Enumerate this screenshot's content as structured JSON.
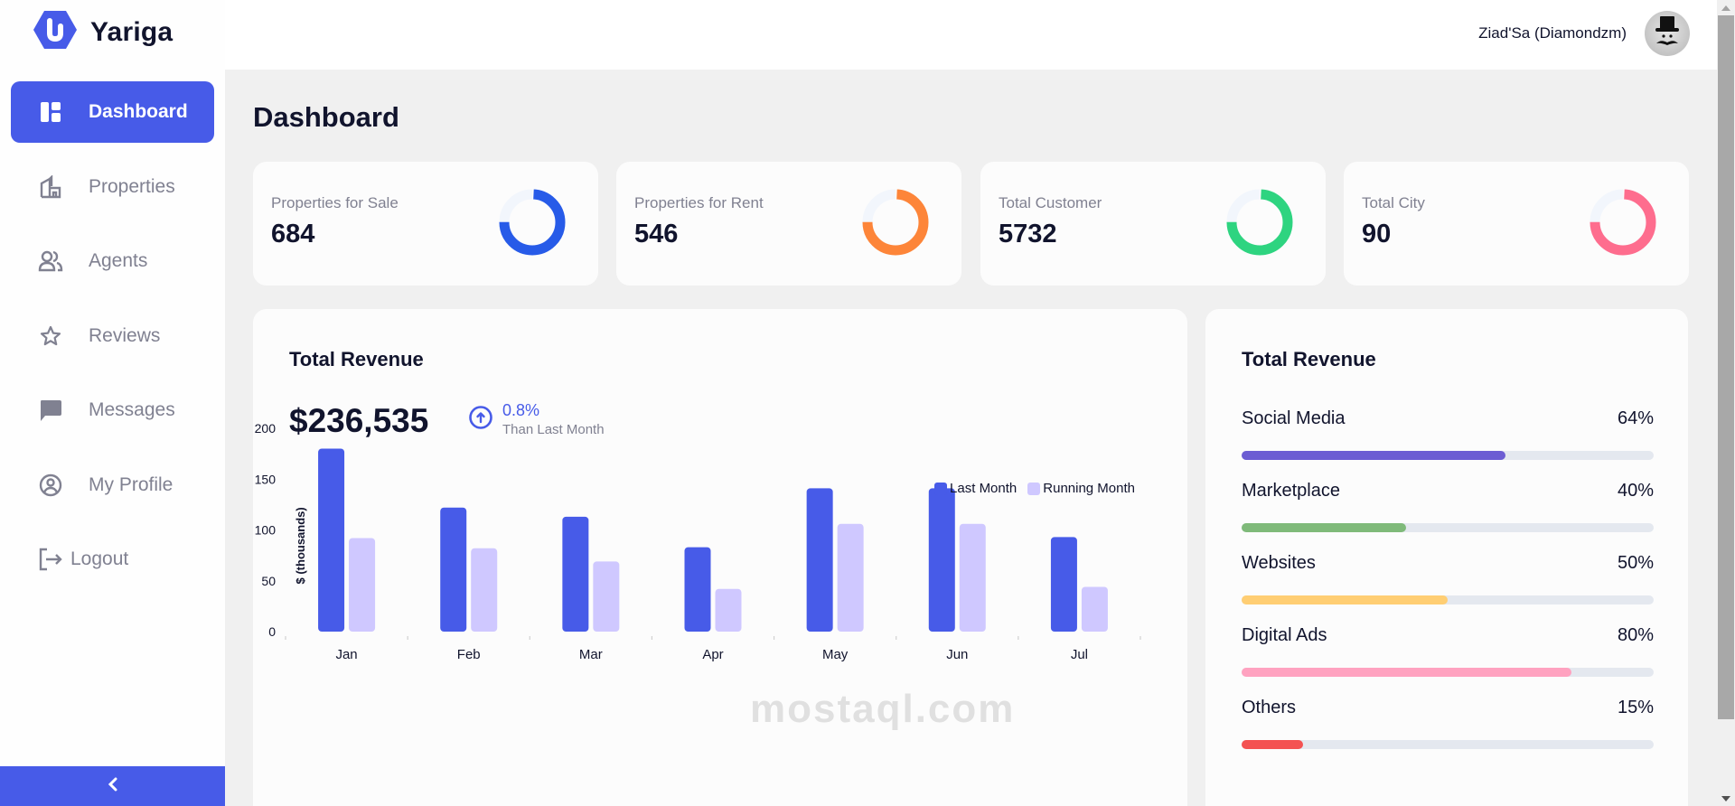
{
  "app": {
    "name": "Yariga",
    "brand_color": "#475BE8"
  },
  "header": {
    "user_name": "Ziad'Sa (Diamondzm)"
  },
  "sidebar": {
    "items": [
      {
        "label": "Dashboard",
        "icon": "dashboard-icon",
        "active": true
      },
      {
        "label": "Properties",
        "icon": "building-icon",
        "active": false
      },
      {
        "label": "Agents",
        "icon": "people-icon",
        "active": false
      },
      {
        "label": "Reviews",
        "icon": "star-icon",
        "active": false
      },
      {
        "label": "Messages",
        "icon": "message-icon",
        "active": false
      },
      {
        "label": "My Profile",
        "icon": "profile-icon",
        "active": false
      },
      {
        "label": "Logout",
        "icon": "logout-icon",
        "active": false
      }
    ],
    "collapse_icon": "chevron-left-icon"
  },
  "page": {
    "title": "Dashboard"
  },
  "stats": [
    {
      "label": "Properties for Sale",
      "value": "684",
      "color": "#275BE8",
      "fill_pct": 75
    },
    {
      "label": "Properties for Rent",
      "value": "546",
      "color": "#FD8539",
      "fill_pct": 75
    },
    {
      "label": "Total Customer",
      "value": "5732",
      "color": "#2ED480",
      "fill_pct": 75
    },
    {
      "label": "Total City",
      "value": "90",
      "color": "#FE6D8E",
      "fill_pct": 75
    }
  ],
  "revenue": {
    "title": "Total Revenue",
    "amount": "$236,535",
    "change_pct": "0.8%",
    "change_label": "Than Last Month"
  },
  "revenue_breakdown": {
    "title": "Total Revenue",
    "items": [
      {
        "label": "Social Media",
        "pct_label": "64%",
        "pct": 64,
        "color": "#6C5DD3"
      },
      {
        "label": "Marketplace",
        "pct_label": "40%",
        "pct": 40,
        "color": "#7FBA7A"
      },
      {
        "label": "Websites",
        "pct_label": "50%",
        "pct": 50,
        "color": "#FFCE73"
      },
      {
        "label": "Digital Ads",
        "pct_label": "80%",
        "pct": 80,
        "color": "#FFA2C0"
      },
      {
        "label": "Others",
        "pct_label": "15%",
        "pct": 15,
        "color": "#F45252"
      }
    ]
  },
  "chart_data": {
    "type": "bar",
    "title": "Total Revenue",
    "categories": [
      "Jan",
      "Feb",
      "Mar",
      "Apr",
      "May",
      "Jun",
      "Jul"
    ],
    "series": [
      {
        "name": "Last Month",
        "color": "#475BE8",
        "values": [
          180,
          122,
          113,
          83,
          141,
          141,
          93
        ]
      },
      {
        "name": "Running Month",
        "color": "#CFC8FF",
        "values": [
          92,
          82,
          69,
          42,
          106,
          106,
          44
        ]
      }
    ],
    "xlabel": "",
    "ylabel": "$ (thousands)",
    "yticks": [
      0,
      50,
      100,
      150,
      200
    ],
    "ylim": [
      0,
      200
    ],
    "grid": false,
    "legend_position": "top-right"
  },
  "watermark": "mostaql.com"
}
